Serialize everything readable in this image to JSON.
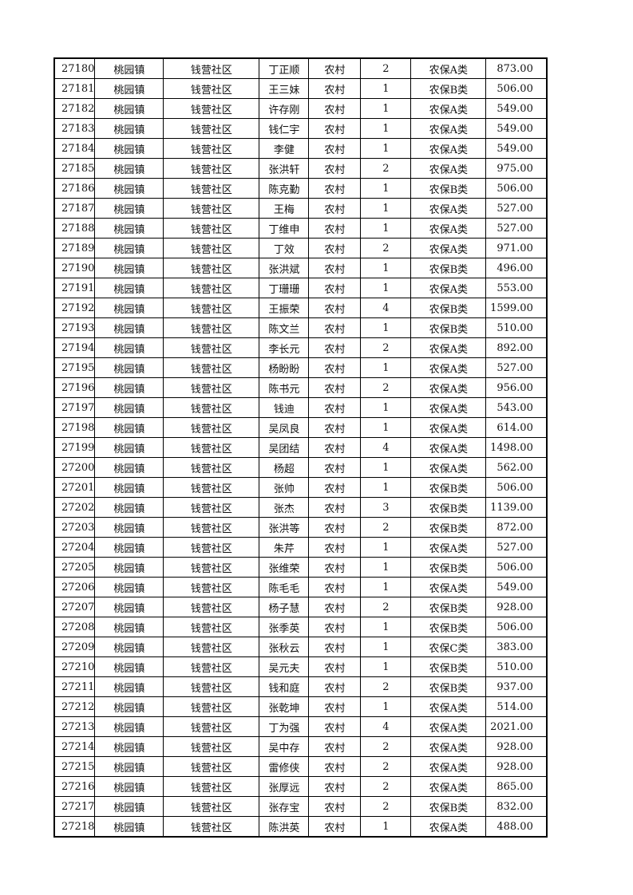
{
  "table": {
    "rows": [
      [
        "27180",
        "桃园镇",
        "钱营社区",
        "丁正顺",
        "农村",
        "2",
        "农保A类",
        "873.00"
      ],
      [
        "27181",
        "桃园镇",
        "钱营社区",
        "王三妹",
        "农村",
        "1",
        "农保B类",
        "506.00"
      ],
      [
        "27182",
        "桃园镇",
        "钱营社区",
        "许存刚",
        "农村",
        "1",
        "农保A类",
        "549.00"
      ],
      [
        "27183",
        "桃园镇",
        "钱营社区",
        "钱仁宇",
        "农村",
        "1",
        "农保A类",
        "549.00"
      ],
      [
        "27184",
        "桃园镇",
        "钱营社区",
        "李健",
        "农村",
        "1",
        "农保A类",
        "549.00"
      ],
      [
        "27185",
        "桃园镇",
        "钱营社区",
        "张洪轩",
        "农村",
        "2",
        "农保A类",
        "975.00"
      ],
      [
        "27186",
        "桃园镇",
        "钱营社区",
        "陈克勤",
        "农村",
        "1",
        "农保B类",
        "506.00"
      ],
      [
        "27187",
        "桃园镇",
        "钱营社区",
        "王梅",
        "农村",
        "1",
        "农保A类",
        "527.00"
      ],
      [
        "27188",
        "桃园镇",
        "钱营社区",
        "丁维申",
        "农村",
        "1",
        "农保A类",
        "527.00"
      ],
      [
        "27189",
        "桃园镇",
        "钱营社区",
        "丁效",
        "农村",
        "2",
        "农保A类",
        "971.00"
      ],
      [
        "27190",
        "桃园镇",
        "钱营社区",
        "张洪斌",
        "农村",
        "1",
        "农保B类",
        "496.00"
      ],
      [
        "27191",
        "桃园镇",
        "钱营社区",
        "丁珊珊",
        "农村",
        "1",
        "农保A类",
        "553.00"
      ],
      [
        "27192",
        "桃园镇",
        "钱营社区",
        "王振荣",
        "农村",
        "4",
        "农保B类",
        "1599.00"
      ],
      [
        "27193",
        "桃园镇",
        "钱营社区",
        "陈文兰",
        "农村",
        "1",
        "农保B类",
        "510.00"
      ],
      [
        "27194",
        "桃园镇",
        "钱营社区",
        "李长元",
        "农村",
        "2",
        "农保A类",
        "892.00"
      ],
      [
        "27195",
        "桃园镇",
        "钱营社区",
        "杨盼盼",
        "农村",
        "1",
        "农保A类",
        "527.00"
      ],
      [
        "27196",
        "桃园镇",
        "钱营社区",
        "陈书元",
        "农村",
        "2",
        "农保A类",
        "956.00"
      ],
      [
        "27197",
        "桃园镇",
        "钱营社区",
        "钱迪",
        "农村",
        "1",
        "农保A类",
        "543.00"
      ],
      [
        "27198",
        "桃园镇",
        "钱营社区",
        "吴凤良",
        "农村",
        "1",
        "农保A类",
        "614.00"
      ],
      [
        "27199",
        "桃园镇",
        "钱营社区",
        "吴团结",
        "农村",
        "4",
        "农保A类",
        "1498.00"
      ],
      [
        "27200",
        "桃园镇",
        "钱营社区",
        "杨超",
        "农村",
        "1",
        "农保A类",
        "562.00"
      ],
      [
        "27201",
        "桃园镇",
        "钱营社区",
        "张帅",
        "农村",
        "1",
        "农保B类",
        "506.00"
      ],
      [
        "27202",
        "桃园镇",
        "钱营社区",
        "张杰",
        "农村",
        "3",
        "农保B类",
        "1139.00"
      ],
      [
        "27203",
        "桃园镇",
        "钱营社区",
        "张洪等",
        "农村",
        "2",
        "农保B类",
        "872.00"
      ],
      [
        "27204",
        "桃园镇",
        "钱营社区",
        "朱芹",
        "农村",
        "1",
        "农保A类",
        "527.00"
      ],
      [
        "27205",
        "桃园镇",
        "钱营社区",
        "张维荣",
        "农村",
        "1",
        "农保B类",
        "506.00"
      ],
      [
        "27206",
        "桃园镇",
        "钱营社区",
        "陈毛毛",
        "农村",
        "1",
        "农保A类",
        "549.00"
      ],
      [
        "27207",
        "桃园镇",
        "钱营社区",
        "杨子慧",
        "农村",
        "2",
        "农保B类",
        "928.00"
      ],
      [
        "27208",
        "桃园镇",
        "钱营社区",
        "张季英",
        "农村",
        "1",
        "农保B类",
        "506.00"
      ],
      [
        "27209",
        "桃园镇",
        "钱营社区",
        "张秋云",
        "农村",
        "1",
        "农保C类",
        "383.00"
      ],
      [
        "27210",
        "桃园镇",
        "钱营社区",
        "吴元夫",
        "农村",
        "1",
        "农保B类",
        "510.00"
      ],
      [
        "27211",
        "桃园镇",
        "钱营社区",
        "钱和庭",
        "农村",
        "2",
        "农保B类",
        "937.00"
      ],
      [
        "27212",
        "桃园镇",
        "钱营社区",
        "张乾坤",
        "农村",
        "1",
        "农保A类",
        "514.00"
      ],
      [
        "27213",
        "桃园镇",
        "钱营社区",
        "丁为强",
        "农村",
        "4",
        "农保A类",
        "2021.00"
      ],
      [
        "27214",
        "桃园镇",
        "钱营社区",
        "吴中存",
        "农村",
        "2",
        "农保A类",
        "928.00"
      ],
      [
        "27215",
        "桃园镇",
        "钱营社区",
        "雷修侠",
        "农村",
        "2",
        "农保A类",
        "928.00"
      ],
      [
        "27216",
        "桃园镇",
        "钱营社区",
        "张厚远",
        "农村",
        "2",
        "农保A类",
        "865.00"
      ],
      [
        "27217",
        "桃园镇",
        "钱营社区",
        "张存宝",
        "农村",
        "2",
        "农保B类",
        "832.00"
      ],
      [
        "27218",
        "桃园镇",
        "钱营社区",
        "陈洪英",
        "农村",
        "1",
        "农保A类",
        "488.00"
      ]
    ]
  }
}
